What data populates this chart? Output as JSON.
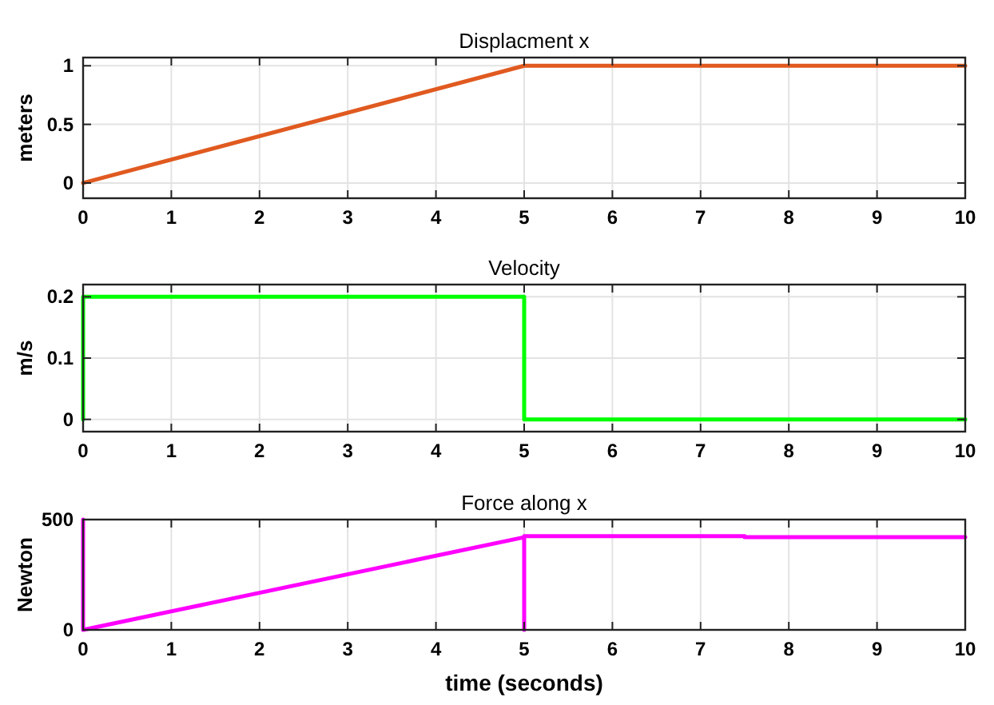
{
  "chart_data": [
    {
      "type": "line",
      "title": "Displacment x",
      "ylabel": "meters",
      "x": [
        0,
        5,
        10
      ],
      "series": [
        {
          "color": "#e05a20",
          "values": [
            0,
            1,
            1
          ]
        }
      ],
      "xlim": [
        0,
        10
      ],
      "xticks": [
        0,
        1,
        2,
        3,
        4,
        5,
        6,
        7,
        8,
        9,
        10
      ],
      "ylim": [
        -0.13,
        1.07
      ],
      "yticks": [
        0,
        0.5,
        1
      ],
      "grid": true
    },
    {
      "type": "line",
      "title": "Velocity",
      "ylabel": "m/s",
      "x": [
        0,
        0,
        5,
        5,
        10
      ],
      "series": [
        {
          "color": "#00ff00",
          "values": [
            0,
            0.2,
            0.2,
            0,
            0
          ]
        }
      ],
      "xlim": [
        0,
        10
      ],
      "xticks": [
        0,
        1,
        2,
        3,
        4,
        5,
        6,
        7,
        8,
        9,
        10
      ],
      "ylim": [
        -0.02,
        0.22
      ],
      "yticks": [
        0,
        0.1,
        0.2
      ],
      "grid": true
    },
    {
      "type": "line",
      "title": "Force along x",
      "xlabel": "time (seconds)",
      "ylabel": "Newton",
      "x": [
        0,
        0,
        5,
        5,
        5,
        7.5,
        7.5,
        10
      ],
      "series": [
        {
          "color": "#ff00ff",
          "values": [
            500,
            0,
            420,
            0,
            425,
            425,
            420,
            420
          ]
        }
      ],
      "xlim": [
        0,
        10
      ],
      "xticks": [
        0,
        1,
        2,
        3,
        4,
        5,
        6,
        7,
        8,
        9,
        10
      ],
      "ylim": [
        0,
        500
      ],
      "yticks": [
        0,
        500
      ],
      "grid": true
    }
  ]
}
